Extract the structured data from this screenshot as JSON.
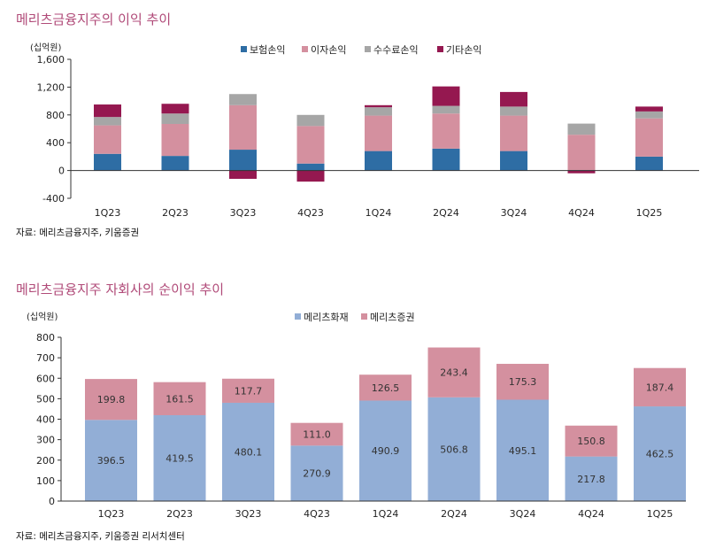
{
  "colors": {
    "title": "#b04a78",
    "insurance": "#2e6da4",
    "interest": "#d4909f",
    "fee": "#a6a6a6",
    "other": "#951850",
    "fire": "#92aed6",
    "securities": "#d4909f"
  },
  "chart1": {
    "title": "메리츠금융지주의 이익 추이",
    "source": "자료: 메리츠금융지주, 키움증권",
    "unit": "(십억원)",
    "chart_data": {
      "type": "bar",
      "stacked": true,
      "categories": [
        "1Q23",
        "2Q23",
        "3Q23",
        "4Q23",
        "1Q24",
        "2Q24",
        "3Q24",
        "4Q24",
        "1Q25"
      ],
      "series": [
        {
          "name": "보험손익",
          "color": "#2e6da4",
          "values": [
            240,
            210,
            300,
            100,
            280,
            315,
            280,
            5,
            200
          ]
        },
        {
          "name": "이자손익",
          "color": "#d4909f",
          "values": [
            410,
            460,
            640,
            540,
            510,
            505,
            510,
            510,
            550
          ]
        },
        {
          "name": "수수료손익",
          "color": "#a6a6a6",
          "values": [
            120,
            150,
            160,
            160,
            120,
            110,
            130,
            160,
            100
          ]
        },
        {
          "name": "기타손익",
          "color": "#951850",
          "values": [
            180,
            140,
            -120,
            -160,
            30,
            280,
            210,
            -40,
            70
          ]
        }
      ],
      "ylim": [
        -400,
        1600
      ],
      "yticks": [
        -400,
        0,
        400,
        800,
        1200,
        1600
      ],
      "ytick_labels": [
        "-400",
        "0",
        "400",
        "800",
        "1,200",
        "1,600"
      ],
      "legend_position": "top-center"
    }
  },
  "chart2": {
    "title": "메리츠금융지주 자회사의 순이익 추이",
    "source": "자료: 메리츠금융지주, 키움증권 리서치센터",
    "unit": "(십억원)",
    "chart_data": {
      "type": "bar",
      "stacked": true,
      "categories": [
        "1Q23",
        "2Q23",
        "3Q23",
        "4Q23",
        "1Q24",
        "2Q24",
        "3Q24",
        "4Q24",
        "1Q25"
      ],
      "series": [
        {
          "name": "메리츠화재",
          "color": "#92aed6",
          "values": [
            396.5,
            419.5,
            480.1,
            270.9,
            490.9,
            506.8,
            495.1,
            217.8,
            462.5
          ],
          "labels": [
            "396.5",
            "419.5",
            "480.1",
            "270.9",
            "490.9",
            "506.8",
            "495.1",
            "217.8",
            "462.5"
          ]
        },
        {
          "name": "메리츠증권",
          "color": "#d4909f",
          "values": [
            199.8,
            161.5,
            117.7,
            111.0,
            126.5,
            243.4,
            175.3,
            150.8,
            187.4
          ],
          "labels": [
            "199.8",
            "161.5",
            "117.7",
            "111.0",
            "126.5",
            "243.4",
            "175.3",
            "150.8",
            "187.4"
          ]
        }
      ],
      "ylim": [
        0,
        800
      ],
      "yticks": [
        0,
        100,
        200,
        300,
        400,
        500,
        600,
        700,
        800
      ],
      "ytick_labels": [
        "0",
        "100",
        "200",
        "300",
        "400",
        "500",
        "600",
        "700",
        "800"
      ],
      "legend_position": "top-center"
    }
  }
}
